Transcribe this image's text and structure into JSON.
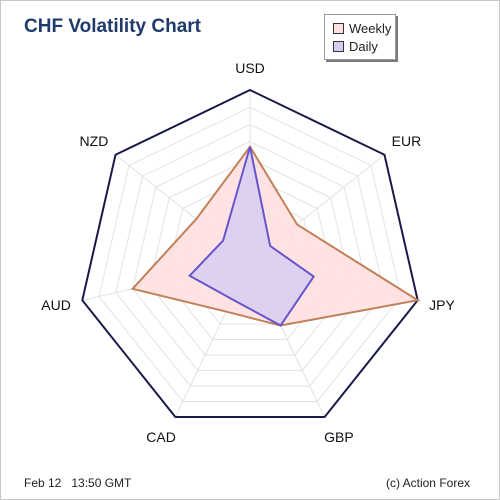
{
  "footer": {
    "date": "Feb 12",
    "time": "13:50 GMT",
    "credit": "(c) Action Forex"
  },
  "chart_data": {
    "type": "radar",
    "title": "CHF Volatility Chart",
    "axes": [
      "USD",
      "EUR",
      "JPY",
      "GBP",
      "CAD",
      "AUD",
      "NZD"
    ],
    "rmax": 10,
    "grid_levels": 10,
    "series": [
      {
        "name": "Weekly",
        "values": [
          6.7,
          3.5,
          10.0,
          4.1,
          3.2,
          7.0,
          4.0
        ],
        "fill": "#ffdede",
        "stroke": "#c0805a"
      },
      {
        "name": "Daily",
        "values": [
          6.7,
          1.5,
          3.8,
          4.1,
          2.4,
          3.6,
          2.0
        ],
        "fill": "#d6ccf2",
        "stroke": "#6655cc"
      }
    ],
    "outline_color": "#1a1a4a",
    "legend_position": "top-right"
  }
}
